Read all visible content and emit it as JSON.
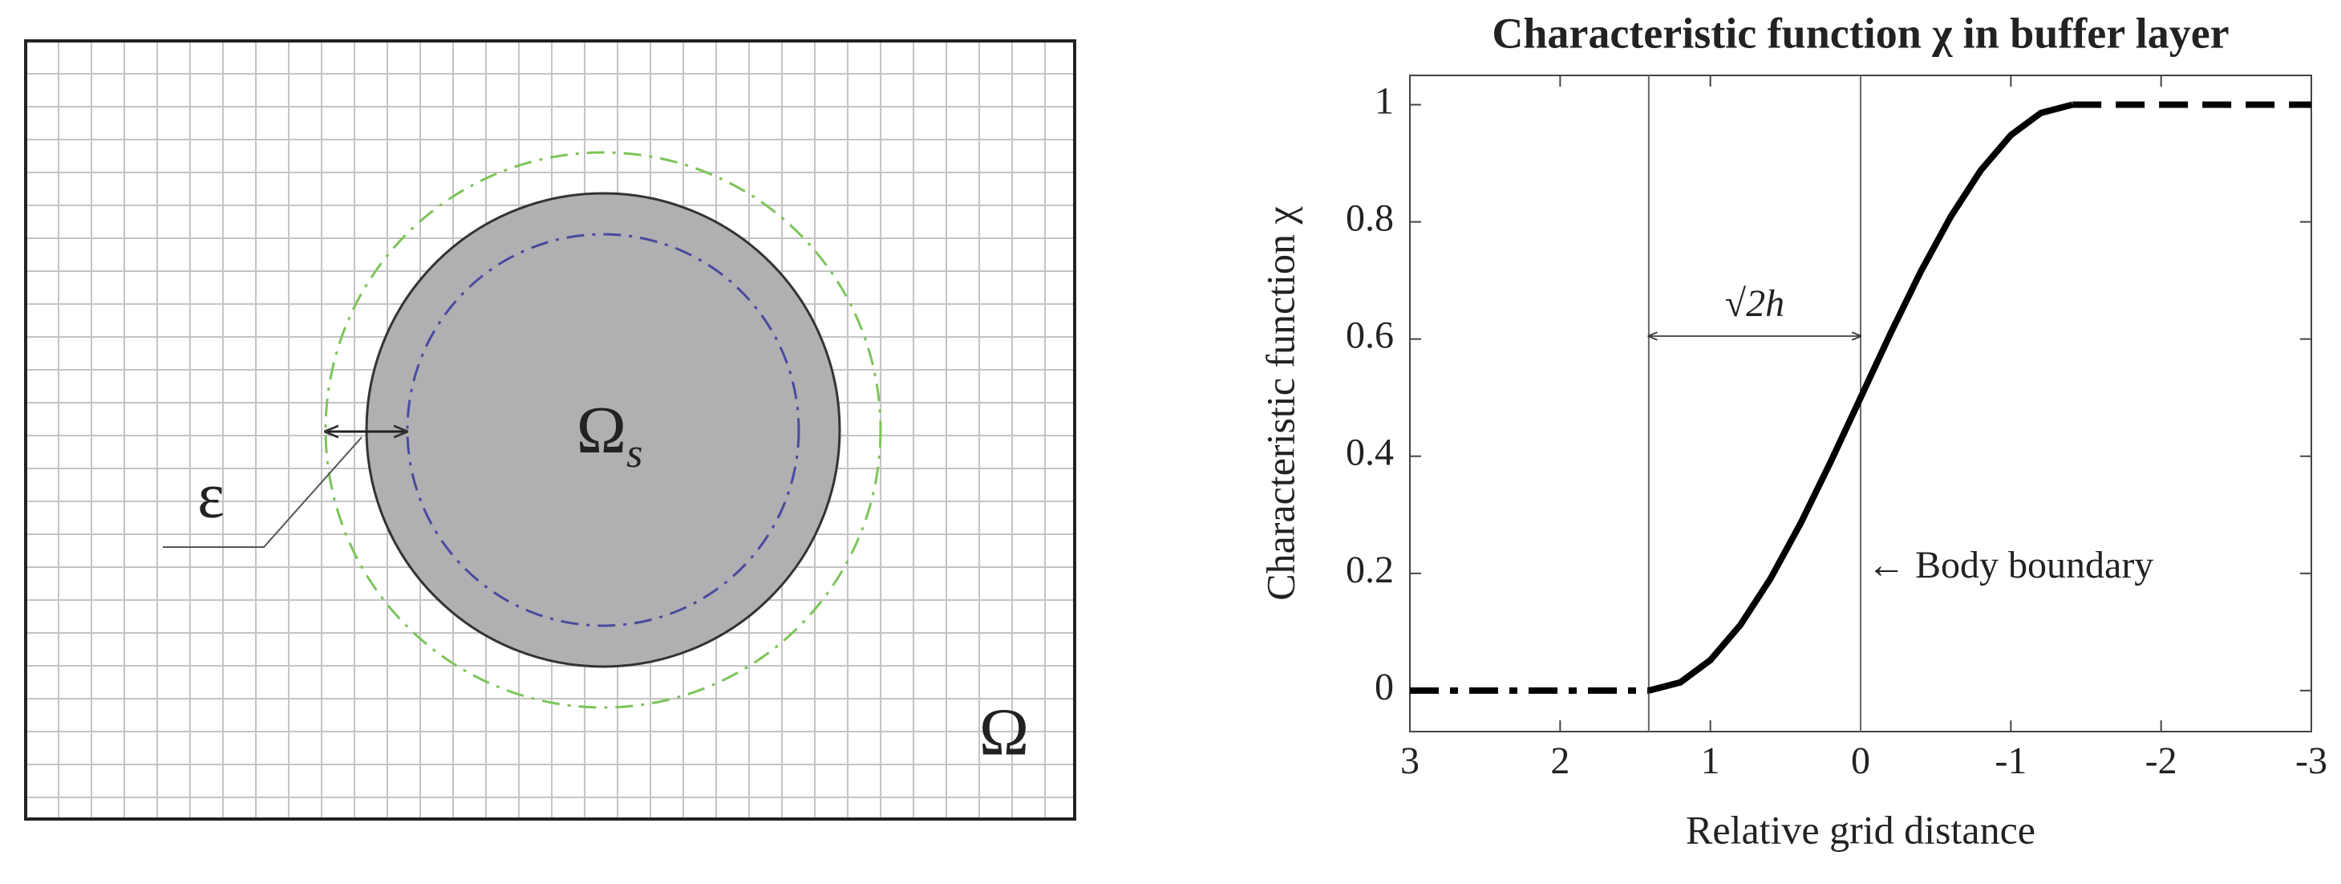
{
  "diagram": {
    "epsilon_label": "ε",
    "solid_domain_label": {
      "symbol": "Ω",
      "subscript": "s"
    },
    "domain_label": "Ω"
  },
  "chart_data": {
    "type": "line",
    "title": "Characteristic function χ in buffer layer",
    "xlabel": "Relative grid distance",
    "ylabel": "Characteristic function χ",
    "xlim": [
      3,
      -3
    ],
    "xticks": [
      3,
      2,
      1,
      0,
      -1,
      -2,
      -3
    ],
    "ylim": [
      -0.07,
      1.05
    ],
    "yticks": [
      0,
      0.2,
      0.4,
      0.6,
      0.8,
      1
    ],
    "vlines": [
      1.41,
      0
    ],
    "annotations": [
      "√2h",
      "← Body boundary"
    ],
    "series": [
      {
        "color": "#000000",
        "style": "dashdot",
        "x": [
          3,
          1.41
        ],
        "values": [
          0,
          0
        ]
      },
      {
        "color": "#000000",
        "style": "solid",
        "x": [
          1.41,
          1.2,
          1.0,
          0.8,
          0.6,
          0.4,
          0.2,
          0,
          -0.2,
          -0.4,
          -0.6,
          -0.8,
          -1.0,
          -1.2,
          -1.41
        ],
        "values": [
          0,
          0.014,
          0.052,
          0.112,
          0.191,
          0.285,
          0.39,
          0.5,
          0.61,
          0.715,
          0.809,
          0.888,
          0.948,
          0.986,
          1
        ]
      },
      {
        "color": "#000000",
        "style": "dashed",
        "x": [
          -1.41,
          -3
        ],
        "values": [
          1,
          1
        ]
      }
    ]
  }
}
